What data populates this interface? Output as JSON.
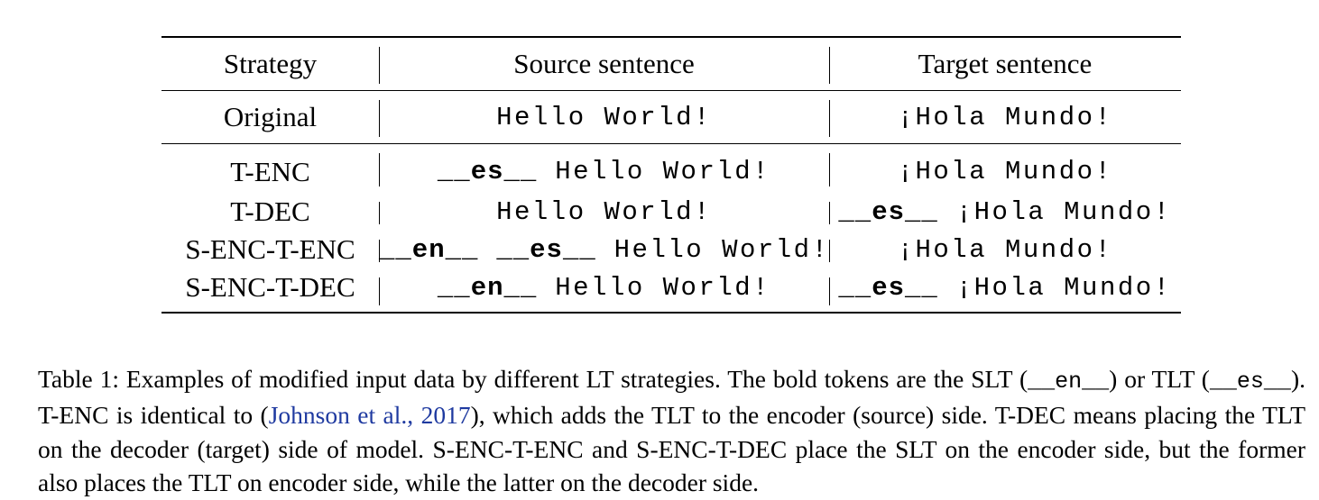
{
  "table": {
    "headers": [
      "Strategy",
      "Source sentence",
      "Target sentence"
    ],
    "rows": [
      {
        "strategy": "Original",
        "source_tokens": [],
        "source_text": "Hello World!",
        "target_tokens": [],
        "target_text": "¡Hola Mundo!"
      },
      {
        "strategy": "T-ENC",
        "source_tokens": [
          "__es__"
        ],
        "source_text": "Hello World!",
        "target_tokens": [],
        "target_text": "¡Hola Mundo!"
      },
      {
        "strategy": "T-DEC",
        "source_tokens": [],
        "source_text": "Hello World!",
        "target_tokens": [
          "__es__"
        ],
        "target_text": "¡Hola Mundo!"
      },
      {
        "strategy": "S-ENC-T-ENC",
        "source_tokens": [
          "__en__",
          "__es__"
        ],
        "source_text": "Hello World!",
        "target_tokens": [],
        "target_text": "¡Hola Mundo!"
      },
      {
        "strategy": "S-ENC-T-DEC",
        "source_tokens": [
          "__en__"
        ],
        "source_text": "Hello World!",
        "target_tokens": [
          "__es__"
        ],
        "target_text": "¡Hola Mundo!"
      }
    ]
  },
  "caption": {
    "p1": "Table 1: Examples of modified input data by different LT strategies. The bold tokens are the SLT (",
    "slt_token": "__en__",
    "p2": ") or TLT (",
    "tlt_token": "__es__",
    "p3": "). T-ENC is identical to (",
    "cite_authors": "Johnson et al.",
    "cite_sep": ", ",
    "cite_year": "2017",
    "p4": "), which adds the TLT to the encoder (source) side. T-DEC means placing the TLT on the decoder (target) side of model. S-ENC-T-ENC and S-ENC-T-DEC place the SLT on the encoder side, but the former also places the TLT on encoder side, while the latter on the decoder side.",
    "link_color": "#1f3aa0"
  }
}
